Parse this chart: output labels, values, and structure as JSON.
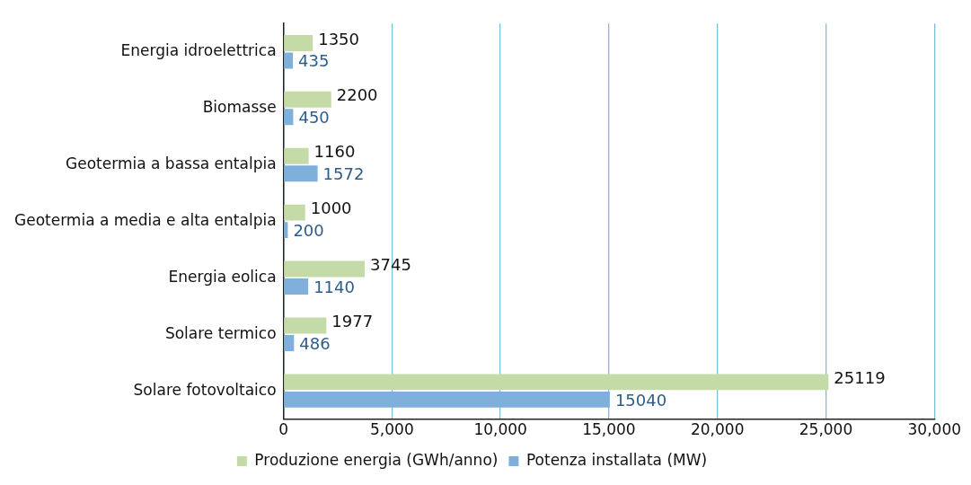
{
  "chart_data": {
    "type": "bar",
    "orientation": "horizontal",
    "categories": [
      "Energia idroelettrica",
      "Biomasse",
      "Geotermia a bassa entalpia",
      "Geotermia a media e alta entalpia",
      "Energia eolica",
      "Solare termico",
      "Solare fotovoltaico"
    ],
    "series": [
      {
        "name": "Produzione energia (GWh/anno)",
        "color": "#c4dba8",
        "values": [
          1350,
          2200,
          1160,
          1000,
          3745,
          1977,
          25119
        ]
      },
      {
        "name": "Potenza installata (MW)",
        "color": "#7fb0dc",
        "values": [
          435,
          450,
          1572,
          200,
          1140,
          486,
          15040
        ]
      }
    ],
    "xlim": [
      0,
      30000
    ],
    "xticks": [
      {
        "value": 0,
        "label": "0"
      },
      {
        "value": 5000,
        "label": "5,000"
      },
      {
        "value": 10000,
        "label": "10,000"
      },
      {
        "value": 15000,
        "label": "15,000"
      },
      {
        "value": 20000,
        "label": "20,000"
      },
      {
        "value": 25000,
        "label": "25,000"
      },
      {
        "value": 30000,
        "label": "30,000"
      }
    ],
    "grid": "x",
    "legend": "bottom",
    "data_labels": true
  }
}
